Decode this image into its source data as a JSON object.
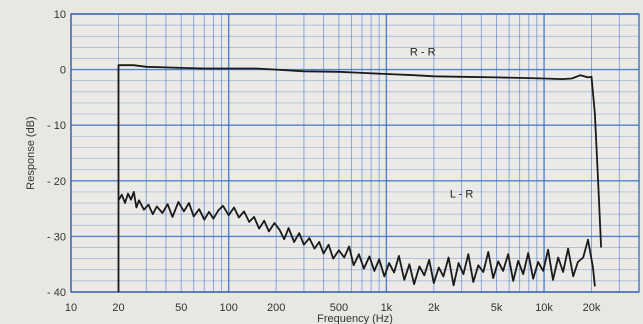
{
  "chart_data": {
    "type": "line",
    "xlabel": "Frequency (Hz)",
    "ylabel": "Response (dB)",
    "xscale": "log",
    "xlim": [
      10,
      40000
    ],
    "ylim": [
      -40,
      10
    ],
    "grid": true,
    "x_ticks": [
      {
        "value": 10,
        "label": "10"
      },
      {
        "value": 20,
        "label": "20"
      },
      {
        "value": 50,
        "label": "50"
      },
      {
        "value": 100,
        "label": "100"
      },
      {
        "value": 200,
        "label": "200"
      },
      {
        "value": 500,
        "label": "500"
      },
      {
        "value": 1000,
        "label": "1k"
      },
      {
        "value": 2000,
        "label": "2k"
      },
      {
        "value": 5000,
        "label": "5k"
      },
      {
        "value": 10000,
        "label": "10k"
      },
      {
        "value": 20000,
        "label": "20k"
      }
    ],
    "y_ticks": [
      {
        "value": 10,
        "label": "10"
      },
      {
        "value": 0,
        "label": "0"
      },
      {
        "value": -10,
        "label": "- 10"
      },
      {
        "value": -20,
        "label": "- 20"
      },
      {
        "value": -30,
        "label": "- 30"
      },
      {
        "value": -40,
        "label": "- 40"
      }
    ],
    "series": [
      {
        "name": "R - R",
        "color": "#1a1a1a",
        "x": [
          20,
          20,
          25,
          30,
          40,
          50,
          70,
          100,
          150,
          200,
          300,
          500,
          700,
          1000,
          1500,
          2000,
          3000,
          5000,
          7000,
          10000,
          13000,
          15000,
          17000,
          19000,
          20000,
          21000,
          22000,
          23000
        ],
        "y": [
          -40,
          0.8,
          0.8,
          0.5,
          0.4,
          0.3,
          0.2,
          0.2,
          0.2,
          0,
          -0.3,
          -0.4,
          -0.6,
          -0.8,
          -1.0,
          -1.2,
          -1.3,
          -1.4,
          -1.5,
          -1.6,
          -1.7,
          -1.6,
          -1.0,
          -1.4,
          -1.3,
          -8,
          -20,
          -32
        ]
      },
      {
        "name": "L - R",
        "color": "#1a1a1a",
        "x": [
          20,
          21,
          22,
          23,
          24,
          25,
          26,
          27,
          29,
          31,
          33,
          35,
          38,
          41,
          44,
          48,
          52,
          56,
          60,
          65,
          70,
          75,
          80,
          86,
          92,
          100,
          108,
          116,
          125,
          135,
          145,
          156,
          168,
          180,
          195,
          210,
          225,
          240,
          260,
          280,
          300,
          325,
          350,
          375,
          400,
          430,
          460,
          500,
          540,
          580,
          620,
          670,
          720,
          780,
          840,
          900,
          970,
          1040,
          1120,
          1200,
          1300,
          1400,
          1500,
          1620,
          1740,
          1870,
          2000,
          2150,
          2300,
          2480,
          2670,
          2870,
          3080,
          3310,
          3560,
          3830,
          4120,
          4430,
          4760,
          5120,
          5500,
          5920,
          6370,
          6850,
          7370,
          7930,
          8530,
          9170,
          9870,
          10600,
          11400,
          12300,
          13200,
          14200,
          15300,
          16400,
          17700,
          19000,
          20400,
          21000
        ],
        "y": [
          -23.5,
          -22.5,
          -24,
          -22.3,
          -23.4,
          -22,
          -24.8,
          -23.5,
          -25.2,
          -24.3,
          -26,
          -24.6,
          -25.8,
          -24.2,
          -26.5,
          -23.8,
          -25.5,
          -24,
          -26.4,
          -25.1,
          -27,
          -25.6,
          -26.8,
          -25.3,
          -24.5,
          -26.2,
          -24.8,
          -26.6,
          -25.5,
          -27.4,
          -26.5,
          -28.6,
          -27.2,
          -29.1,
          -27.6,
          -28.8,
          -30.5,
          -28.5,
          -31,
          -29.4,
          -31.5,
          -30.3,
          -32.2,
          -31,
          -33.1,
          -31.5,
          -34,
          -32.5,
          -33.8,
          -31.8,
          -35.2,
          -33.2,
          -35.8,
          -33.6,
          -36.2,
          -34.1,
          -37.2,
          -34.8,
          -36.5,
          -33.5,
          -37.8,
          -35,
          -38.6,
          -35.4,
          -37,
          -34.2,
          -38.4,
          -35.6,
          -37.2,
          -33.8,
          -38.8,
          -34.8,
          -36.8,
          -33.2,
          -38.2,
          -35.2,
          -36.4,
          -32.8,
          -37.5,
          -34.5,
          -36.2,
          -33.2,
          -38,
          -34.4,
          -36.8,
          -33,
          -37.6,
          -34.6,
          -36.2,
          -32.4,
          -37.8,
          -33.8,
          -36.4,
          -32.2,
          -37.2,
          -34.6,
          -33.8,
          -30.6,
          -35.5,
          -39
        ]
      }
    ]
  }
}
